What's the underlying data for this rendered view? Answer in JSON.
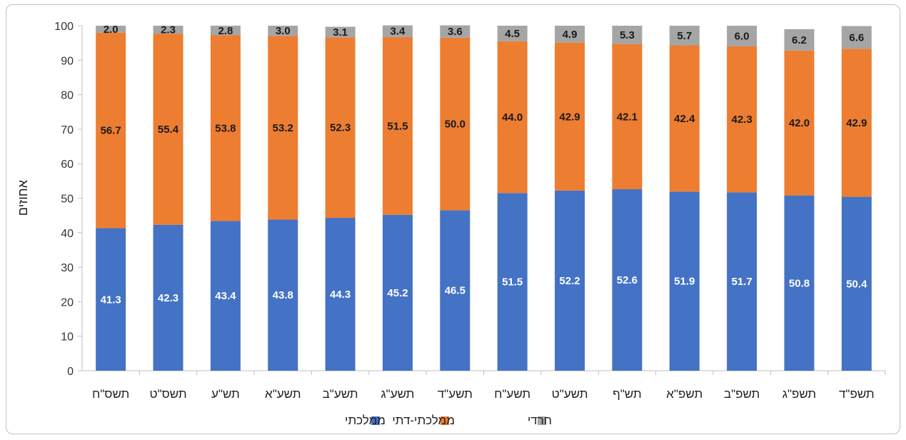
{
  "chart_data": {
    "type": "bar",
    "stacked": true,
    "ylabel": "אחוזים",
    "ylim": [
      0,
      100
    ],
    "yticks": [
      0,
      10,
      20,
      30,
      40,
      50,
      60,
      70,
      80,
      90,
      100
    ],
    "grid": false,
    "legend_position": "bottom",
    "categories": [
      "תשס\"ח",
      "תשס\"ט",
      "תש\"ע",
      "תשע\"א",
      "תשע\"ב",
      "תשע\"ג",
      "תשע\"ד",
      "תשע\"ח",
      "תשע\"ט",
      "תש\"ף",
      "תשפ\"א",
      "תשפ\"ב",
      "תשפ\"ג",
      "תשפ\"ד"
    ],
    "series": [
      {
        "name": "ממלכתי",
        "color": "#4472C4",
        "label_color": "#ffffff",
        "values": [
          41.3,
          42.3,
          43.4,
          43.8,
          44.3,
          45.2,
          46.5,
          51.5,
          52.2,
          52.6,
          51.9,
          51.7,
          50.8,
          50.4
        ]
      },
      {
        "name": "ממלכתי-דתי",
        "color": "#ED7D31",
        "label_color": "#1a1a1a",
        "values": [
          56.7,
          55.4,
          53.8,
          53.2,
          52.3,
          51.5,
          50.0,
          44.0,
          42.9,
          42.1,
          42.4,
          42.3,
          42.0,
          42.9
        ]
      },
      {
        "name": "חרדי",
        "color": "#A5A5A5",
        "label_color": "#1a1a1a",
        "values": [
          2.0,
          2.3,
          2.8,
          3.0,
          3.1,
          3.4,
          3.6,
          4.5,
          4.9,
          5.3,
          5.7,
          6.0,
          6.2,
          6.6
        ]
      }
    ]
  }
}
